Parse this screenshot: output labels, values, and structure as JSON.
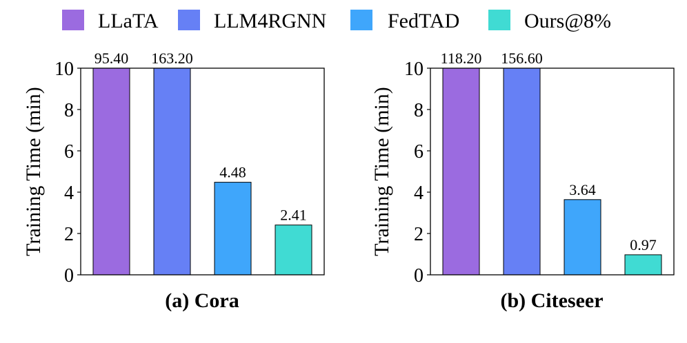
{
  "legend": [
    {
      "label": "LLaTA",
      "color": "#9b6be0"
    },
    {
      "label": "LLM4RGNN",
      "color": "#6680f5"
    },
    {
      "label": "FedTAD",
      "color": "#3fa6fb"
    },
    {
      "label": "Ours@8%",
      "color": "#40dbd3"
    }
  ],
  "chart_data": [
    {
      "type": "bar",
      "title": "(a) Cora",
      "xlabel": "",
      "ylabel": "Training Time (min)",
      "ylim": [
        0,
        10
      ],
      "yticks": [
        "0",
        "2",
        "4",
        "6",
        "8",
        "10"
      ],
      "categories": [
        "LLaTA",
        "LLM4RGNN",
        "FedTAD",
        "Ours@8%"
      ],
      "values": [
        95.4,
        163.2,
        4.48,
        2.41
      ],
      "value_labels": [
        "95.40",
        "163.20",
        "4.48",
        "2.41"
      ]
    },
    {
      "type": "bar",
      "title": "(b) Citeseer",
      "xlabel": "",
      "ylabel": "Training Time (min)",
      "ylim": [
        0,
        10
      ],
      "yticks": [
        "0",
        "2",
        "4",
        "6",
        "8",
        "10"
      ],
      "categories": [
        "LLaTA",
        "LLM4RGNN",
        "FedTAD",
        "Ours@8%"
      ],
      "values": [
        118.2,
        156.6,
        3.64,
        0.97
      ],
      "value_labels": [
        "118.20",
        "156.60",
        "3.64",
        "0.97"
      ]
    }
  ]
}
